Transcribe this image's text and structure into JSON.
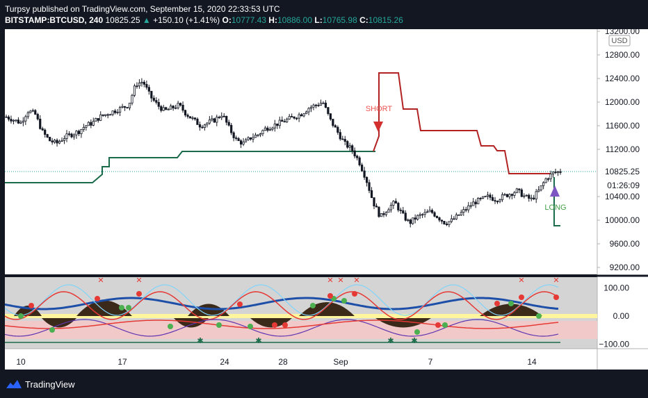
{
  "header": {
    "publisher_line": "Turpsy published on TradingView.com, September 15, 2020 22:33:53 UTC",
    "symbol": "BITSTAMP:BTCUSD, 240",
    "last_price": "10825.25",
    "change": "+150.10 (+1.41%)",
    "o_label": "O:",
    "o_value": "10777.43",
    "h_label": "H:",
    "h_value": "10886.00",
    "l_label": "L:",
    "l_value": "10765.98",
    "c_label": "C:",
    "c_value": "10815.26"
  },
  "colors": {
    "background": "#131722",
    "price_pane": "#ffffff",
    "indicator_pane": "#cfcfcf",
    "stop_short": "#b22222",
    "stop_long": "#1a6b4a",
    "short_marker": "#d32f2f",
    "long_marker": "#7e57c2",
    "long_text": "#43a047",
    "short_text": "#ef5350"
  },
  "annotations": {
    "short_label": "SHORT",
    "long_label": "LONG"
  },
  "chart_data": [
    {
      "type": "candlestick",
      "currency_label": "USD",
      "y_ticks": [
        13200,
        12800,
        12400,
        12000,
        11600,
        11200,
        10400,
        10000,
        9600,
        9200
      ],
      "ylim": [
        9000,
        13300
      ],
      "last_price_label": "10825.25",
      "countdown_label": "01:26:09",
      "x_tick_labels": [
        "10",
        "17",
        "24",
        "28",
        "Sep",
        "7",
        "14"
      ],
      "price_path_close": [
        11750,
        11700,
        11650,
        11850,
        11800,
        11500,
        11350,
        11300,
        11400,
        11450,
        11500,
        11600,
        11650,
        11750,
        11800,
        11850,
        11900,
        11950,
        12300,
        12350,
        12100,
        11950,
        11850,
        11900,
        11950,
        11800,
        11700,
        11600,
        11650,
        11700,
        11800,
        11550,
        11350,
        11300,
        11400,
        11450,
        11550,
        11600,
        11650,
        11700,
        11750,
        11800,
        11900,
        11950,
        12000,
        11700,
        11500,
        11300,
        11200,
        11000,
        10700,
        10300,
        10050,
        10200,
        10300,
        10100,
        9950,
        10050,
        10100,
        10150,
        10050,
        9950,
        10000,
        10100,
        10200,
        10300,
        10350,
        10400,
        10350,
        10400,
        10450,
        10500,
        10400,
        10350,
        10500,
        10700,
        10800,
        10825.25
      ],
      "trailing_stop_long": [
        {
          "from": "Aug 8",
          "to": "Aug 13",
          "value": 10640
        },
        {
          "from": "Aug 14",
          "to": "Aug 20",
          "value": 11060
        },
        {
          "from": "Aug 21",
          "to": "Sep 3",
          "value": 11160
        }
      ],
      "trailing_stop_short": [
        {
          "from": "Sep 3",
          "to": "Sep 4",
          "value": 12480
        },
        {
          "from": "Sep 5",
          "to": "Sep 6",
          "value": 11880
        },
        {
          "from": "Sep 7",
          "to": "Sep 10",
          "value": 11500
        },
        {
          "from": "Sep 11",
          "to": "Sep 12",
          "value": 11220
        },
        {
          "from": "Sep 13",
          "to": "Sep 15",
          "value": 10800
        }
      ],
      "signals": [
        {
          "label": "SHORT",
          "date": "Sep 3",
          "price": 11600
        },
        {
          "label": "LONG",
          "date": "Sep 15",
          "price": 10600
        }
      ]
    },
    {
      "type": "oscillator",
      "y_ticks": [
        100.0,
        0.0,
        -100.0
      ],
      "ylim": [
        -115,
        130
      ]
    }
  ]
}
